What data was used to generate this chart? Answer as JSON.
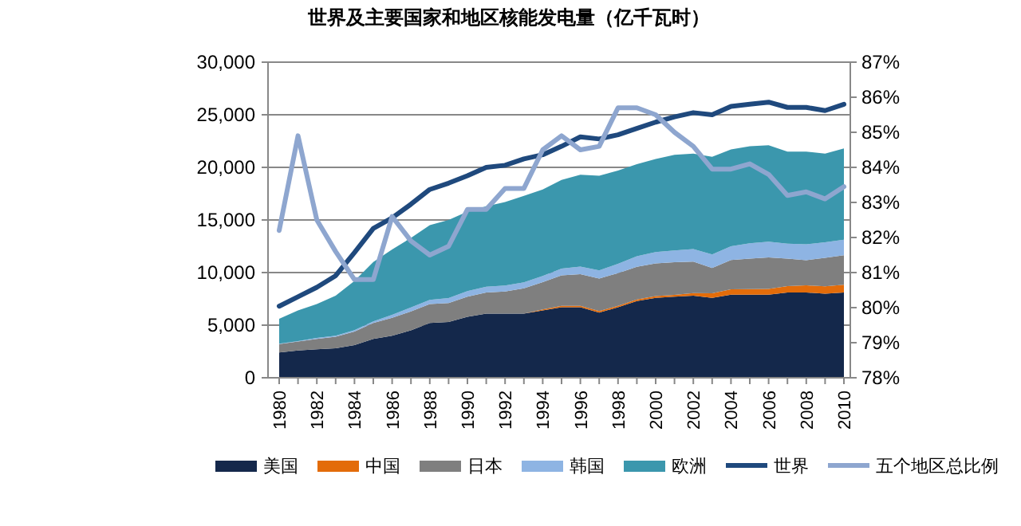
{
  "chart_data": {
    "type": "area",
    "title": "世界及主要国家和地区核能发电量（亿千瓦时）",
    "stacked": true,
    "categories": [
      "1980",
      null,
      "1982",
      null,
      "1984",
      null,
      "1986",
      null,
      "1988",
      null,
      "1990",
      null,
      "1992",
      null,
      "1994",
      null,
      "1996",
      null,
      "1998",
      null,
      "2000",
      null,
      "2002",
      null,
      "2004",
      null,
      "2006",
      null,
      "2008",
      null,
      "2010"
    ],
    "series": [
      {
        "name": "美国",
        "color": "#14284b",
        "values": [
          2400,
          2600,
          2700,
          2800,
          3100,
          3700,
          4000,
          4500,
          5200,
          5300,
          5800,
          6100,
          6100,
          6100,
          6400,
          6700,
          6700,
          6200,
          6700,
          7300,
          7600,
          7700,
          7800,
          7600,
          7900,
          7900,
          7900,
          8100,
          8100,
          8000,
          8100
        ]
      },
      {
        "name": "中国",
        "color": "#e36c0a",
        "values": [
          0,
          0,
          0,
          0,
          0,
          0,
          0,
          0,
          0,
          0,
          0,
          0,
          0,
          0,
          100,
          130,
          140,
          140,
          140,
          150,
          170,
          180,
          250,
          430,
          500,
          520,
          540,
          620,
          680,
          700,
          740
        ]
      },
      {
        "name": "日本",
        "color": "#7f7f7f",
        "values": [
          800,
          850,
          1000,
          1100,
          1300,
          1500,
          1700,
          1800,
          1800,
          1800,
          1900,
          2000,
          2100,
          2400,
          2600,
          2900,
          3000,
          3100,
          3100,
          3100,
          3100,
          3100,
          3000,
          2400,
          2800,
          2900,
          3000,
          2600,
          2400,
          2700,
          2800
        ]
      },
      {
        "name": "韩国",
        "color": "#8eb4e3",
        "values": [
          35,
          30,
          90,
          90,
          120,
          160,
          280,
          390,
          400,
          470,
          530,
          560,
          570,
          580,
          580,
          640,
          730,
          770,
          900,
          1000,
          1090,
          1120,
          1190,
          1300,
          1300,
          1470,
          1490,
          1430,
          1510,
          1480,
          1480
        ]
      },
      {
        "name": "欧洲",
        "color": "#3b97ad",
        "values": [
          2365,
          2920,
          3210,
          3810,
          4680,
          5640,
          6220,
          6610,
          7100,
          7430,
          7570,
          7640,
          7930,
          8220,
          8220,
          8430,
          8730,
          8990,
          8860,
          8750,
          8840,
          9100,
          9060,
          9270,
          9200,
          9210,
          9170,
          8750,
          8810,
          8420,
          8680
        ]
      },
      {
        "name": "世界",
        "type": "line",
        "color": "#1f497d",
        "values": [
          6800,
          7700,
          8600,
          9700,
          11900,
          14200,
          15200,
          16500,
          17900,
          18500,
          19200,
          20000,
          20200,
          20800,
          21200,
          22000,
          22900,
          22700,
          23100,
          23700,
          24300,
          24800,
          25200,
          25000,
          25800,
          26000,
          26200,
          25700,
          25700,
          25400,
          26000
        ]
      },
      {
        "name": "五个地区总比例",
        "type": "line",
        "axis": "y2",
        "color": "#8ea6cf",
        "values": [
          82.2,
          84.9,
          82.5,
          81.6,
          80.8,
          80.8,
          82.6,
          81.9,
          81.5,
          81.75,
          82.8,
          82.8,
          83.4,
          83.4,
          84.5,
          84.9,
          84.5,
          84.6,
          85.7,
          85.7,
          85.5,
          85.0,
          84.6,
          83.95,
          83.95,
          84.1,
          83.8,
          83.2,
          83.3,
          83.1,
          83.45
        ]
      }
    ],
    "ylim": [
      0,
      30000
    ],
    "yticks": [
      {
        "value": 0,
        "label": "0"
      },
      {
        "value": 5000,
        "label": "5,000"
      },
      {
        "value": 10000,
        "label": "10,000"
      },
      {
        "value": 15000,
        "label": "15,000"
      },
      {
        "value": 20000,
        "label": "20,000"
      },
      {
        "value": 25000,
        "label": "25,000"
      },
      {
        "value": 30000,
        "label": "30,000"
      }
    ],
    "y2lim": [
      78,
      87
    ],
    "y2ticks": [
      {
        "value": 78,
        "label": "78%"
      },
      {
        "value": 79,
        "label": "79%"
      },
      {
        "value": 80,
        "label": "80%"
      },
      {
        "value": 81,
        "label": "81%"
      },
      {
        "value": 82,
        "label": "82%"
      },
      {
        "value": 83,
        "label": "83%"
      },
      {
        "value": 84,
        "label": "84%"
      },
      {
        "value": 85,
        "label": "85%"
      },
      {
        "value": 86,
        "label": "86%"
      },
      {
        "value": 87,
        "label": "87%"
      }
    ],
    "grid": "y",
    "legend": "bottom"
  }
}
